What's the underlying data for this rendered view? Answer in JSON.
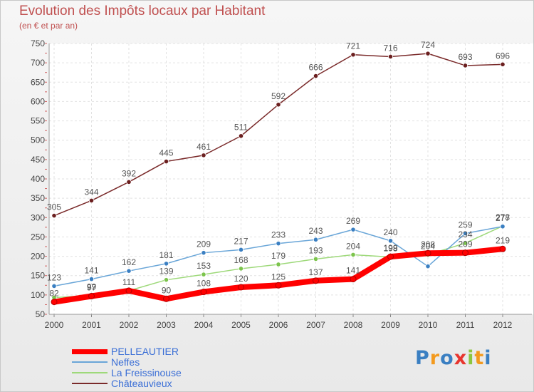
{
  "header": {
    "title": "Evolution des Impôts locaux par Habitant",
    "subtitle": "(en € et par an)"
  },
  "chart_data": {
    "type": "line",
    "title": "Evolution des Impôts locaux par Habitant",
    "subtitle": "(en € et par an)",
    "xlabel": "",
    "ylabel": "",
    "ylim": [
      50,
      750
    ],
    "yticks": [
      50,
      100,
      150,
      200,
      250,
      300,
      350,
      400,
      450,
      500,
      550,
      600,
      650,
      700,
      750
    ],
    "grid": true,
    "x": [
      2000,
      2001,
      2002,
      2003,
      2004,
      2005,
      2006,
      2007,
      2008,
      2009,
      2010,
      2011,
      2012
    ],
    "series": [
      {
        "name": "PELLEAUTIER",
        "color": "#ff0000",
        "marker": "#ff0000",
        "values": [
          82,
          97,
          111,
          90,
          108,
          120,
          125,
          137,
          141,
          199,
          208,
          209,
          219
        ],
        "labels": [
          "82",
          "97",
          "111",
          "90",
          "108",
          "120",
          "125",
          "137",
          "141",
          "199",
          "208",
          "209",
          "219"
        ]
      },
      {
        "name": "Neffes",
        "color": "#6aa6d8",
        "marker": "#3a7fc2",
        "values": [
          123,
          141,
          162,
          181,
          209,
          217,
          233,
          243,
          269,
          240,
          174,
          259,
          277
        ],
        "labels": [
          "123",
          "141",
          "162",
          "181",
          "209",
          "217",
          "233",
          "243",
          "269",
          "240",
          "",
          "259",
          "277"
        ]
      },
      {
        "name": "La Freissinouse",
        "color": "#9ed97a",
        "marker": "#7cc44c",
        "values": [
          93,
          99,
          111,
          139,
          153,
          168,
          179,
          193,
          204,
          198,
          204,
          234,
          278
        ],
        "labels": [
          "",
          "99",
          "",
          "139",
          "153",
          "168",
          "179",
          "193",
          "204",
          "198",
          "204",
          "234",
          "278"
        ]
      },
      {
        "name": "Châteauvieux",
        "color": "#7a2a2a",
        "marker": "#6b1f1f",
        "values": [
          305,
          344,
          392,
          445,
          461,
          511,
          592,
          666,
          721,
          716,
          724,
          693,
          696
        ],
        "labels": [
          "305",
          "344",
          "392",
          "445",
          "461",
          "511",
          "592",
          "666",
          "721",
          "716",
          "724",
          "693",
          "696"
        ]
      }
    ]
  },
  "legend": {
    "items": [
      {
        "label": "PELLEAUTIER",
        "color": "#ff0000"
      },
      {
        "label": "Neffes",
        "color": "#6aa6d8"
      },
      {
        "label": "La Freissinouse",
        "color": "#9ed97a"
      },
      {
        "label": "Châteauvieux",
        "color": "#7a2a2a"
      }
    ]
  },
  "logo": {
    "text": "Proxiti",
    "letters": [
      {
        "char": "P",
        "color": "#3a7fc2"
      },
      {
        "char": "r",
        "color": "#f39a1e"
      },
      {
        "char": "o",
        "color": "#3a7fc2"
      },
      {
        "char": "x",
        "color": "#e8352e"
      },
      {
        "char": "i",
        "color": "#8cc63f"
      },
      {
        "char": "t",
        "color": "#f39a1e"
      },
      {
        "char": "i",
        "color": "#3a7fc2"
      }
    ]
  }
}
